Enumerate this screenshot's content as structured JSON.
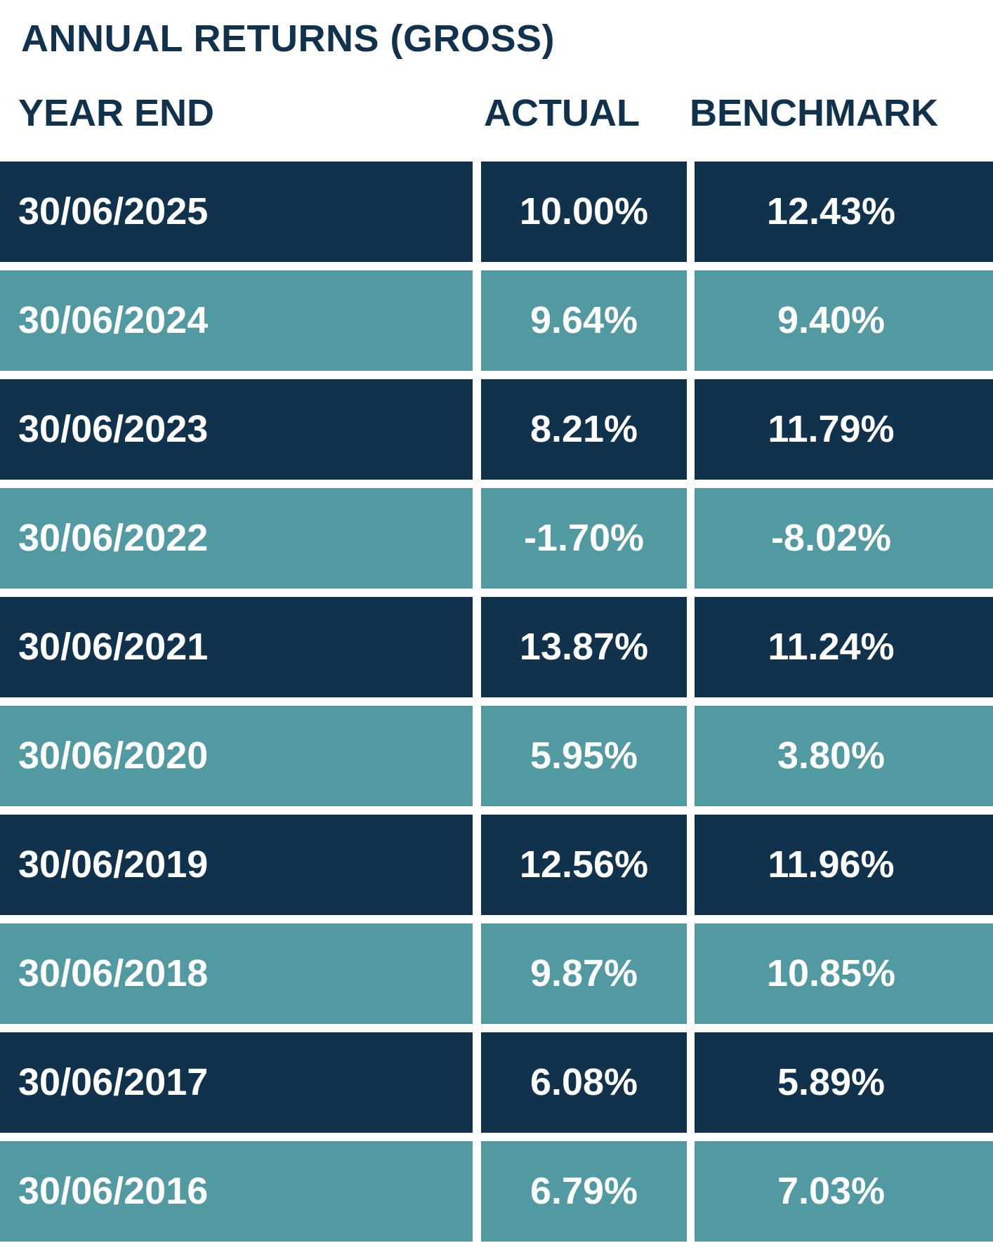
{
  "title": "ANNUAL RETURNS (GROSS)",
  "columns": {
    "year_end": "YEAR END",
    "actual": "ACTUAL",
    "benchmark": "BENCHMARK"
  },
  "colors": {
    "heading_text": "#10324c",
    "dark_row": "#10324c",
    "teal_row": "#529aa1",
    "cell_text": "#ffffff"
  },
  "rows": [
    {
      "year_end": "30/06/2025",
      "actual": "10.00%",
      "benchmark": "12.43%",
      "style": "dark"
    },
    {
      "year_end": "30/06/2024",
      "actual": "9.64%",
      "benchmark": "9.40%",
      "style": "teal"
    },
    {
      "year_end": "30/06/2023",
      "actual": "8.21%",
      "benchmark": "11.79%",
      "style": "dark"
    },
    {
      "year_end": "30/06/2022",
      "actual": "-1.70%",
      "benchmark": "-8.02%",
      "style": "teal"
    },
    {
      "year_end": "30/06/2021",
      "actual": "13.87%",
      "benchmark": "11.24%",
      "style": "dark"
    },
    {
      "year_end": "30/06/2020",
      "actual": "5.95%",
      "benchmark": "3.80%",
      "style": "teal"
    },
    {
      "year_end": "30/06/2019",
      "actual": "12.56%",
      "benchmark": "11.96%",
      "style": "dark"
    },
    {
      "year_end": "30/06/2018",
      "actual": "9.87%",
      "benchmark": "10.85%",
      "style": "teal"
    },
    {
      "year_end": "30/06/2017",
      "actual": "6.08%",
      "benchmark": "5.89%",
      "style": "dark"
    },
    {
      "year_end": "30/06/2016",
      "actual": "6.79%",
      "benchmark": "7.03%",
      "style": "teal"
    }
  ]
}
